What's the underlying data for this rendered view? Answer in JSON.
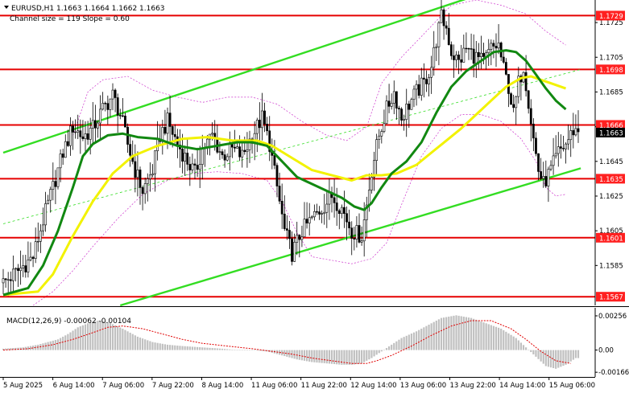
{
  "header": {
    "symbol_line": "EURUSD,H1  1.1663 1.1664 1.1662 1.1663",
    "channel_line": "Channel size = 119 Slope = 0.60"
  },
  "macd_label": "MACD(12,26,9) -0.00062 -0.00104",
  "colors": {
    "level_line": "#e60000",
    "level_badge": "#ff2020",
    "channel": "#33dd22",
    "ma_fast": "#118811",
    "ma_slow": "#f2f200",
    "envelope": "#cc33cc",
    "candle": "#000000",
    "macd_hist": "#c0c0c0",
    "macd_signal": "#e00000",
    "current_badge": "#000000"
  },
  "chart_data": [
    {
      "type": "candlestick",
      "title": "EURUSD,H1",
      "y_ticks": [
        "1.1725",
        "1.1705",
        "1.1685",
        "1.1665",
        "1.1645",
        "1.1625",
        "1.1605",
        "1.1585"
      ],
      "ylim": [
        1.1562,
        1.1738
      ],
      "x_ticks": [
        "5 Aug 2025",
        "6 Aug 14:00",
        "7 Aug 06:00",
        "7 Aug 22:00",
        "8 Aug 14:00",
        "11 Aug 06:00",
        "11 Aug 22:00",
        "12 Aug 14:00",
        "13 Aug 06:00",
        "13 Aug 22:00",
        "14 Aug 14:00",
        "15 Aug 06:00"
      ],
      "levels": [
        {
          "label": "1.1729",
          "value": 1.1729
        },
        {
          "label": "1.1698",
          "value": 1.1698
        },
        {
          "label": "1.1666",
          "value": 1.1666
        },
        {
          "label": "1.1635",
          "value": 1.1635
        },
        {
          "label": "1.1601",
          "value": 1.1601
        },
        {
          "label": "1.1567",
          "value": 1.1567
        }
      ],
      "current_price": {
        "label": "1.1663",
        "value": 1.1663
      },
      "close_path": [
        [
          0,
          1.1575
        ],
        [
          6,
          1.1582
        ],
        [
          12,
          1.159
        ],
        [
          16,
          1.1611
        ],
        [
          20,
          1.163
        ],
        [
          24,
          1.165
        ],
        [
          28,
          1.1665
        ],
        [
          32,
          1.1659
        ],
        [
          36,
          1.1664
        ],
        [
          40,
          1.1675
        ],
        [
          44,
          1.1683
        ],
        [
          47,
          1.1672
        ],
        [
          50,
          1.1655
        ],
        [
          53,
          1.164
        ],
        [
          56,
          1.1628
        ],
        [
          60,
          1.164
        ],
        [
          63,
          1.166
        ],
        [
          66,
          1.1668
        ],
        [
          70,
          1.1655
        ],
        [
          74,
          1.1645
        ],
        [
          77,
          1.1638
        ],
        [
          80,
          1.1652
        ],
        [
          84,
          1.166
        ],
        [
          88,
          1.1648
        ],
        [
          92,
          1.1652
        ],
        [
          96,
          1.1648
        ],
        [
          100,
          1.166
        ],
        [
          104,
          1.167
        ],
        [
          107,
          1.1655
        ],
        [
          110,
          1.163
        ],
        [
          113,
          1.1605
        ],
        [
          116,
          1.1592
        ],
        [
          120,
          1.1605
        ],
        [
          124,
          1.1612
        ],
        [
          128,
          1.1618
        ],
        [
          132,
          1.1625
        ],
        [
          136,
          1.1618
        ],
        [
          140,
          1.1605
        ],
        [
          144,
          1.1602
        ],
        [
          146,
          1.162
        ],
        [
          148,
          1.164
        ],
        [
          151,
          1.166
        ],
        [
          154,
          1.1675
        ],
        [
          157,
          1.1685
        ],
        [
          160,
          1.167
        ],
        [
          163,
          1.1678
        ],
        [
          166,
          1.1685
        ],
        [
          169,
          1.169
        ],
        [
          172,
          1.17
        ],
        [
          174,
          1.1715
        ],
        [
          176,
          1.1728
        ],
        [
          178,
          1.1722
        ],
        [
          180,
          1.1708
        ],
        [
          183,
          1.1702
        ],
        [
          186,
          1.171
        ],
        [
          190,
          1.1705
        ],
        [
          193,
          1.1702
        ],
        [
          196,
          1.171
        ],
        [
          199,
          1.1712
        ],
        [
          201,
          1.1698
        ],
        [
          203,
          1.1688
        ],
        [
          205,
          1.1672
        ],
        [
          207,
          1.169
        ],
        [
          209,
          1.17
        ],
        [
          211,
          1.168
        ],
        [
          213,
          1.1658
        ],
        [
          215,
          1.164
        ],
        [
          217,
          1.1632
        ],
        [
          220,
          1.164
        ],
        [
          223,
          1.165
        ],
        [
          226,
          1.1655
        ],
        [
          229,
          1.1663
        ]
      ],
      "ma_fast_path": [
        [
          0,
          1.1568
        ],
        [
          10,
          1.1572
        ],
        [
          16,
          1.1585
        ],
        [
          22,
          1.1605
        ],
        [
          28,
          1.163
        ],
        [
          32,
          1.1648
        ],
        [
          36,
          1.1655
        ],
        [
          42,
          1.166
        ],
        [
          48,
          1.1661
        ],
        [
          54,
          1.1659
        ],
        [
          62,
          1.1658
        ],
        [
          70,
          1.1654
        ],
        [
          78,
          1.1652
        ],
        [
          86,
          1.1654
        ],
        [
          94,
          1.1656
        ],
        [
          100,
          1.1656
        ],
        [
          106,
          1.1654
        ],
        [
          112,
          1.1645
        ],
        [
          118,
          1.1636
        ],
        [
          124,
          1.1632
        ],
        [
          130,
          1.1628
        ],
        [
          136,
          1.1624
        ],
        [
          141,
          1.1619
        ],
        [
          145,
          1.1617
        ],
        [
          148,
          1.1621
        ],
        [
          152,
          1.163
        ],
        [
          156,
          1.1638
        ],
        [
          162,
          1.1645
        ],
        [
          168,
          1.1656
        ],
        [
          174,
          1.1673
        ],
        [
          180,
          1.1688
        ],
        [
          186,
          1.1697
        ],
        [
          192,
          1.1703
        ],
        [
          197,
          1.1708
        ],
        [
          202,
          1.1709
        ],
        [
          206,
          1.1708
        ],
        [
          210,
          1.1703
        ],
        [
          214,
          1.1695
        ],
        [
          218,
          1.1687
        ],
        [
          222,
          1.168
        ],
        [
          226,
          1.1675
        ]
      ],
      "ma_slow_path": [
        [
          0,
          1.1568
        ],
        [
          14,
          1.157
        ],
        [
          20,
          1.158
        ],
        [
          28,
          1.1602
        ],
        [
          36,
          1.1622
        ],
        [
          44,
          1.1638
        ],
        [
          52,
          1.1648
        ],
        [
          62,
          1.1654
        ],
        [
          72,
          1.1658
        ],
        [
          82,
          1.1659
        ],
        [
          92,
          1.1657
        ],
        [
          102,
          1.1657
        ],
        [
          108,
          1.1654
        ],
        [
          116,
          1.1647
        ],
        [
          124,
          1.164
        ],
        [
          132,
          1.1637
        ],
        [
          140,
          1.1634
        ],
        [
          146,
          1.1637
        ],
        [
          152,
          1.1637
        ],
        [
          158,
          1.1638
        ],
        [
          166,
          1.1643
        ],
        [
          172,
          1.165
        ],
        [
          178,
          1.1657
        ],
        [
          184,
          1.1664
        ],
        [
          190,
          1.1672
        ],
        [
          196,
          1.168
        ],
        [
          202,
          1.1688
        ],
        [
          208,
          1.1693
        ],
        [
          212,
          1.1694
        ],
        [
          216,
          1.1692
        ],
        [
          220,
          1.169
        ],
        [
          226,
          1.1687
        ]
      ],
      "channel_upper": [
        [
          0,
          1.165
        ],
        [
          193,
          1.1742
        ]
      ],
      "channel_lower": [
        [
          47,
          1.1562
        ],
        [
          232,
          1.1641
        ]
      ],
      "channel_mid": [
        [
          0,
          1.1609
        ],
        [
          232,
          1.1698
        ]
      ],
      "envelope_upper_path": [
        [
          28,
          1.166
        ],
        [
          34,
          1.1685
        ],
        [
          40,
          1.1692
        ],
        [
          50,
          1.1694
        ],
        [
          60,
          1.1686
        ],
        [
          70,
          1.1682
        ],
        [
          80,
          1.1679
        ],
        [
          90,
          1.1682
        ],
        [
          100,
          1.1682
        ],
        [
          110,
          1.1678
        ],
        [
          120,
          1.1668
        ],
        [
          130,
          1.166
        ],
        [
          138,
          1.1657
        ],
        [
          146,
          1.1665
        ],
        [
          152,
          1.169
        ],
        [
          160,
          1.1705
        ],
        [
          170,
          1.172
        ],
        [
          180,
          1.1735
        ],
        [
          190,
          1.1738
        ],
        [
          200,
          1.1735
        ],
        [
          210,
          1.173
        ],
        [
          218,
          1.172
        ],
        [
          226,
          1.1712
        ]
      ],
      "envelope_lower_path": [
        [
          12,
          1.1562
        ],
        [
          20,
          1.157
        ],
        [
          28,
          1.1582
        ],
        [
          36,
          1.1596
        ],
        [
          46,
          1.1612
        ],
        [
          56,
          1.1626
        ],
        [
          66,
          1.1634
        ],
        [
          76,
          1.1638
        ],
        [
          86,
          1.1639
        ],
        [
          96,
          1.1638
        ],
        [
          106,
          1.1634
        ],
        [
          112,
          1.1622
        ],
        [
          118,
          1.1604
        ],
        [
          124,
          1.159
        ],
        [
          132,
          1.1588
        ],
        [
          140,
          1.1586
        ],
        [
          148,
          1.1589
        ],
        [
          154,
          1.1598
        ],
        [
          160,
          1.162
        ],
        [
          168,
          1.1648
        ],
        [
          176,
          1.1664
        ],
        [
          184,
          1.1672
        ],
        [
          192,
          1.1672
        ],
        [
          200,
          1.1668
        ],
        [
          208,
          1.1658
        ],
        [
          214,
          1.1645
        ],
        [
          218,
          1.163
        ],
        [
          222,
          1.1625
        ],
        [
          226,
          1.1626
        ]
      ]
    },
    {
      "type": "bar",
      "title": "MACD(12,26,9)",
      "y_ticks": [
        "0.00256",
        "0.00",
        "-0.00166"
      ],
      "ylim": [
        -0.00195,
        0.0031
      ],
      "hist_path": [
        [
          0,
          0.0001
        ],
        [
          8,
          0.0002
        ],
        [
          14,
          0.0004
        ],
        [
          18,
          0.0006
        ],
        [
          22,
          0.0008
        ],
        [
          26,
          0.0012
        ],
        [
          30,
          0.0017
        ],
        [
          34,
          0.002
        ],
        [
          38,
          0.0022
        ],
        [
          42,
          0.0021
        ],
        [
          48,
          0.0016
        ],
        [
          54,
          0.001
        ],
        [
          60,
          0.0006
        ],
        [
          66,
          0.0004
        ],
        [
          72,
          0.0003
        ],
        [
          80,
          0.0002
        ],
        [
          88,
          0.0001
        ],
        [
          94,
          0.0
        ],
        [
          100,
          0.0
        ],
        [
          106,
          -0.0001
        ],
        [
          112,
          -0.0004
        ],
        [
          118,
          -0.0007
        ],
        [
          124,
          -0.0009
        ],
        [
          130,
          -0.001
        ],
        [
          136,
          -0.0011
        ],
        [
          140,
          -0.0011
        ],
        [
          144,
          -0.001
        ],
        [
          148,
          -0.0006
        ],
        [
          152,
          -0.0001
        ],
        [
          156,
          0.0004
        ],
        [
          160,
          0.0009
        ],
        [
          166,
          0.0014
        ],
        [
          172,
          0.002
        ],
        [
          176,
          0.0024
        ],
        [
          182,
          0.0026
        ],
        [
          188,
          0.0024
        ],
        [
          194,
          0.002
        ],
        [
          200,
          0.0016
        ],
        [
          206,
          0.0009
        ],
        [
          210,
          0.0002
        ],
        [
          214,
          -0.0005
        ],
        [
          218,
          -0.0012
        ],
        [
          222,
          -0.0014
        ],
        [
          226,
          -0.0011
        ],
        [
          230,
          -0.0006
        ]
      ],
      "signal_path": [
        [
          0,
          0.0
        ],
        [
          10,
          0.0001
        ],
        [
          20,
          0.0004
        ],
        [
          28,
          0.0008
        ],
        [
          36,
          0.0013
        ],
        [
          42,
          0.0017
        ],
        [
          48,
          0.0018
        ],
        [
          56,
          0.0016
        ],
        [
          64,
          0.0012
        ],
        [
          72,
          0.0008
        ],
        [
          80,
          0.0005
        ],
        [
          90,
          0.0003
        ],
        [
          100,
          0.0001
        ],
        [
          108,
          -0.0001
        ],
        [
          116,
          -0.0003
        ],
        [
          124,
          -0.0006
        ],
        [
          132,
          -0.0008
        ],
        [
          140,
          -0.001
        ],
        [
          146,
          -0.001
        ],
        [
          150,
          -0.0008
        ],
        [
          156,
          -0.0004
        ],
        [
          164,
          0.0003
        ],
        [
          172,
          0.0011
        ],
        [
          180,
          0.0018
        ],
        [
          188,
          0.0022
        ],
        [
          196,
          0.0022
        ],
        [
          204,
          0.0016
        ],
        [
          210,
          0.0008
        ],
        [
          216,
          -0.0001
        ],
        [
          222,
          -0.0008
        ],
        [
          228,
          -0.001
        ]
      ]
    }
  ]
}
